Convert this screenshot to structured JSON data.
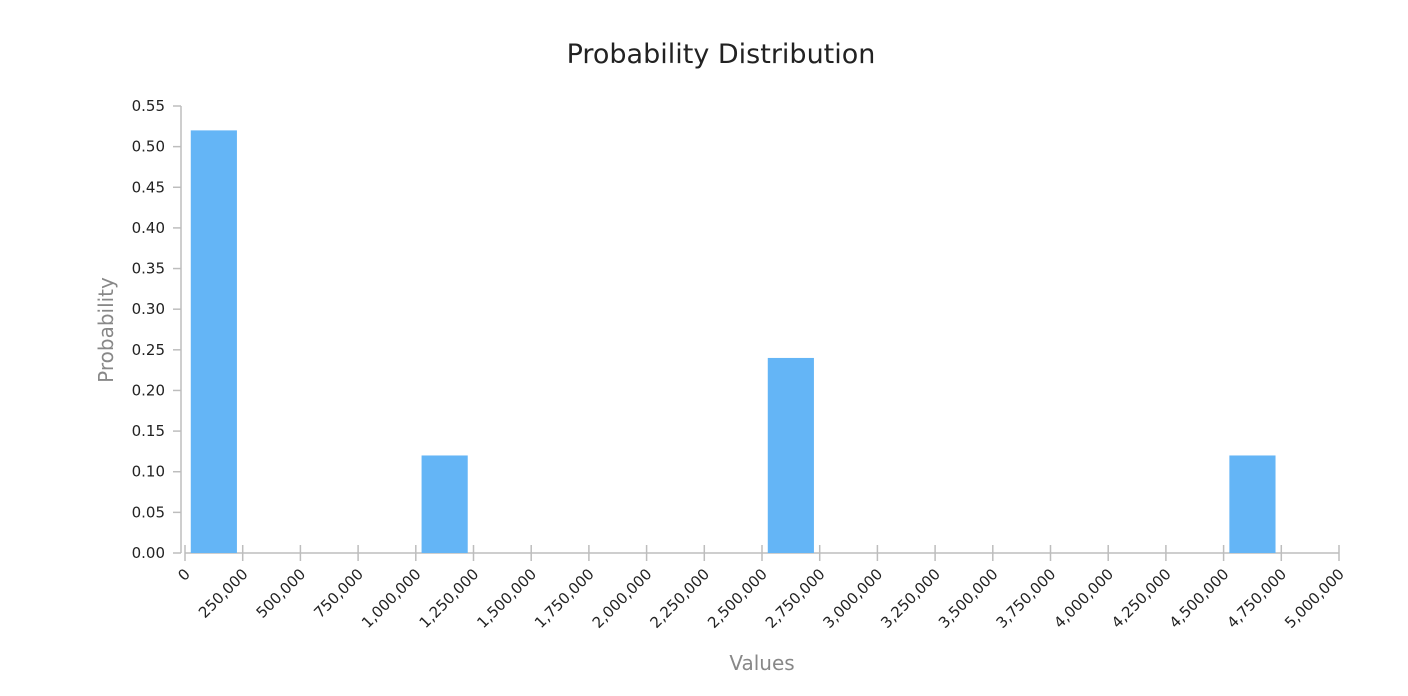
{
  "chart_data": {
    "type": "bar",
    "title": "Probability Distribution",
    "xlabel": "Values",
    "ylabel": "Probability",
    "xlim": [
      0,
      5000000
    ],
    "ylim": [
      0,
      0.55
    ],
    "grid": false,
    "bar_color": "#64b5f6",
    "axis_color": "#bdbdbd",
    "x_ticks": [
      0,
      250000,
      500000,
      750000,
      1000000,
      1250000,
      1500000,
      1750000,
      2000000,
      2250000,
      2500000,
      2750000,
      3000000,
      3250000,
      3500000,
      3750000,
      4000000,
      4250000,
      4500000,
      4750000,
      5000000
    ],
    "x_tick_labels": [
      "0",
      "250,000",
      "500,000",
      "750,000",
      "1,000,000",
      "1,250,000",
      "1,500,000",
      "1,750,000",
      "2,000,000",
      "2,250,000",
      "2,500,000",
      "2,750,000",
      "3,000,000",
      "3,250,000",
      "3,500,000",
      "3,750,000",
      "4,000,000",
      "4,250,000",
      "4,500,000",
      "4,750,000",
      "5,000,000"
    ],
    "y_ticks": [
      0,
      0.05,
      0.1,
      0.15,
      0.2,
      0.25,
      0.3,
      0.35,
      0.4,
      0.45,
      0.5,
      0.55
    ],
    "y_tick_labels": [
      "0.00",
      "0.05",
      "0.10",
      "0.15",
      "0.20",
      "0.25",
      "0.30",
      "0.35",
      "0.40",
      "0.45",
      "0.50",
      "0.55"
    ],
    "bars": [
      {
        "x_start": 25000,
        "x_end": 225000,
        "value": 0.52
      },
      {
        "x_start": 1025000,
        "x_end": 1225000,
        "value": 0.12
      },
      {
        "x_start": 2525000,
        "x_end": 2725000,
        "value": 0.24
      },
      {
        "x_start": 4525000,
        "x_end": 4725000,
        "value": 0.12
      }
    ]
  }
}
